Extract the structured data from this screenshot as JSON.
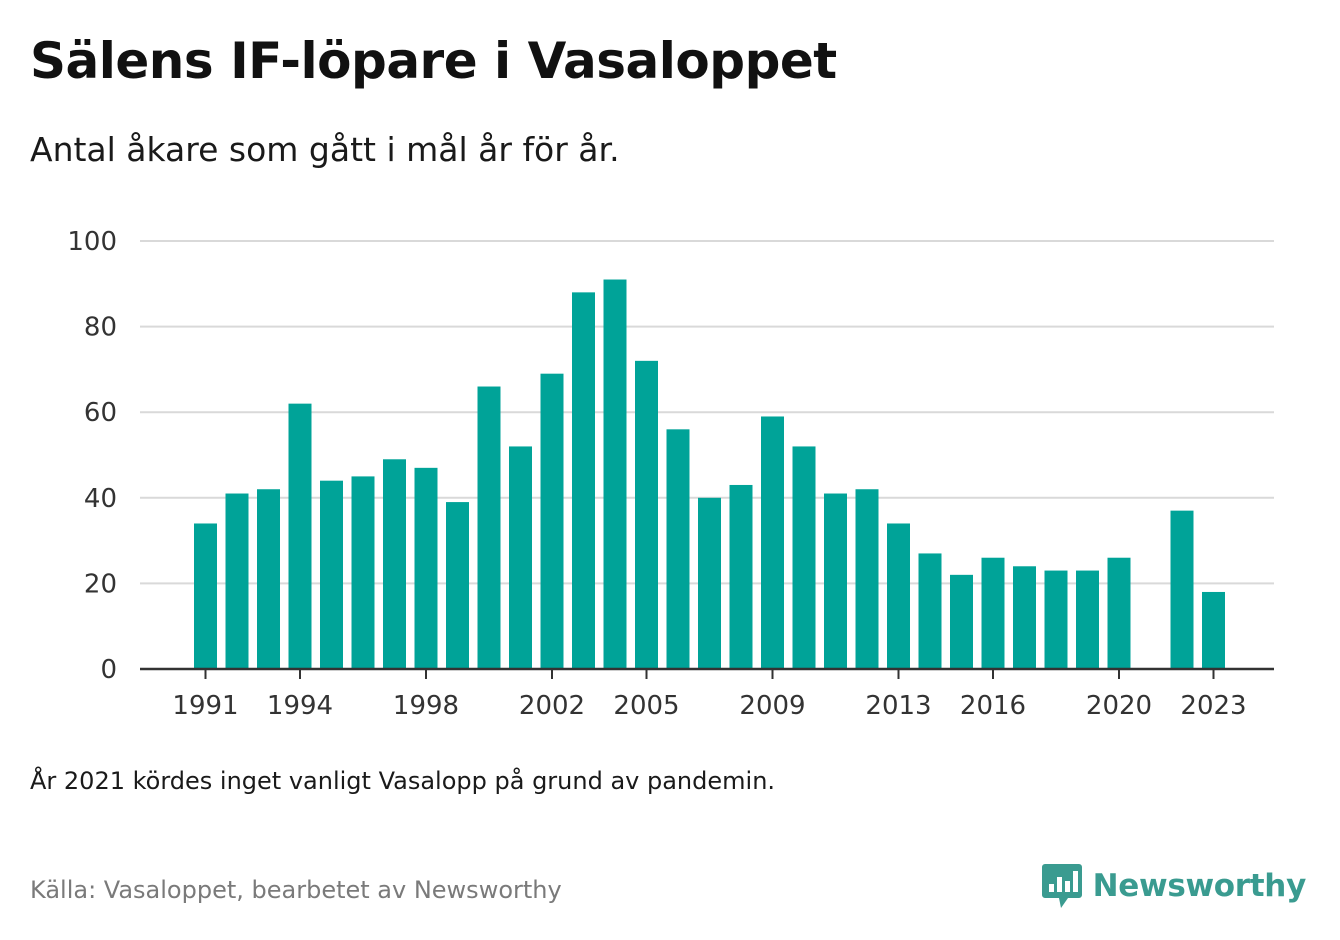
{
  "colors": {
    "bar": "#00a398",
    "grid": "#d9d9d9",
    "axis": "#333333",
    "brand": "#3a9b90",
    "source_text": "#7a7a7a"
  },
  "chart_data": {
    "type": "bar",
    "title": "Sälens IF-löpare i Vasaloppet",
    "subtitle": "Antal åkare som gått i mål år för år.",
    "categories": [
      "1991",
      "1992",
      "1993",
      "1994",
      "1995",
      "1996",
      "1997",
      "1998",
      "1999",
      "2000",
      "2001",
      "2002",
      "2003",
      "2004",
      "2005",
      "2006",
      "2007",
      "2008",
      "2009",
      "2010",
      "2011",
      "2012",
      "2013",
      "2014",
      "2015",
      "2016",
      "2017",
      "2018",
      "2019",
      "2020",
      "2021",
      "2022",
      "2023"
    ],
    "values": [
      34,
      41,
      42,
      62,
      44,
      45,
      49,
      47,
      39,
      66,
      52,
      69,
      88,
      91,
      72,
      56,
      40,
      43,
      59,
      52,
      41,
      42,
      34,
      27,
      22,
      26,
      24,
      23,
      23,
      26,
      null,
      37,
      18
    ],
    "x_tick_labels": [
      "1991",
      "1994",
      "1998",
      "2002",
      "2005",
      "2009",
      "2013",
      "2016",
      "2020",
      "2023"
    ],
    "y_ticks": [
      0,
      20,
      40,
      60,
      80,
      100
    ],
    "ylim": [
      0,
      100
    ],
    "xlabel": "",
    "ylabel": "",
    "grid": true,
    "legend": "none"
  },
  "note": "År 2021 kördes inget vanligt Vasalopp på grund av pandemin.",
  "source": "Källa: Vasaloppet, bearbetet av Newsworthy",
  "brand": {
    "name": "Newsworthy",
    "icon": "bar-chart-speech-bubble-icon"
  }
}
